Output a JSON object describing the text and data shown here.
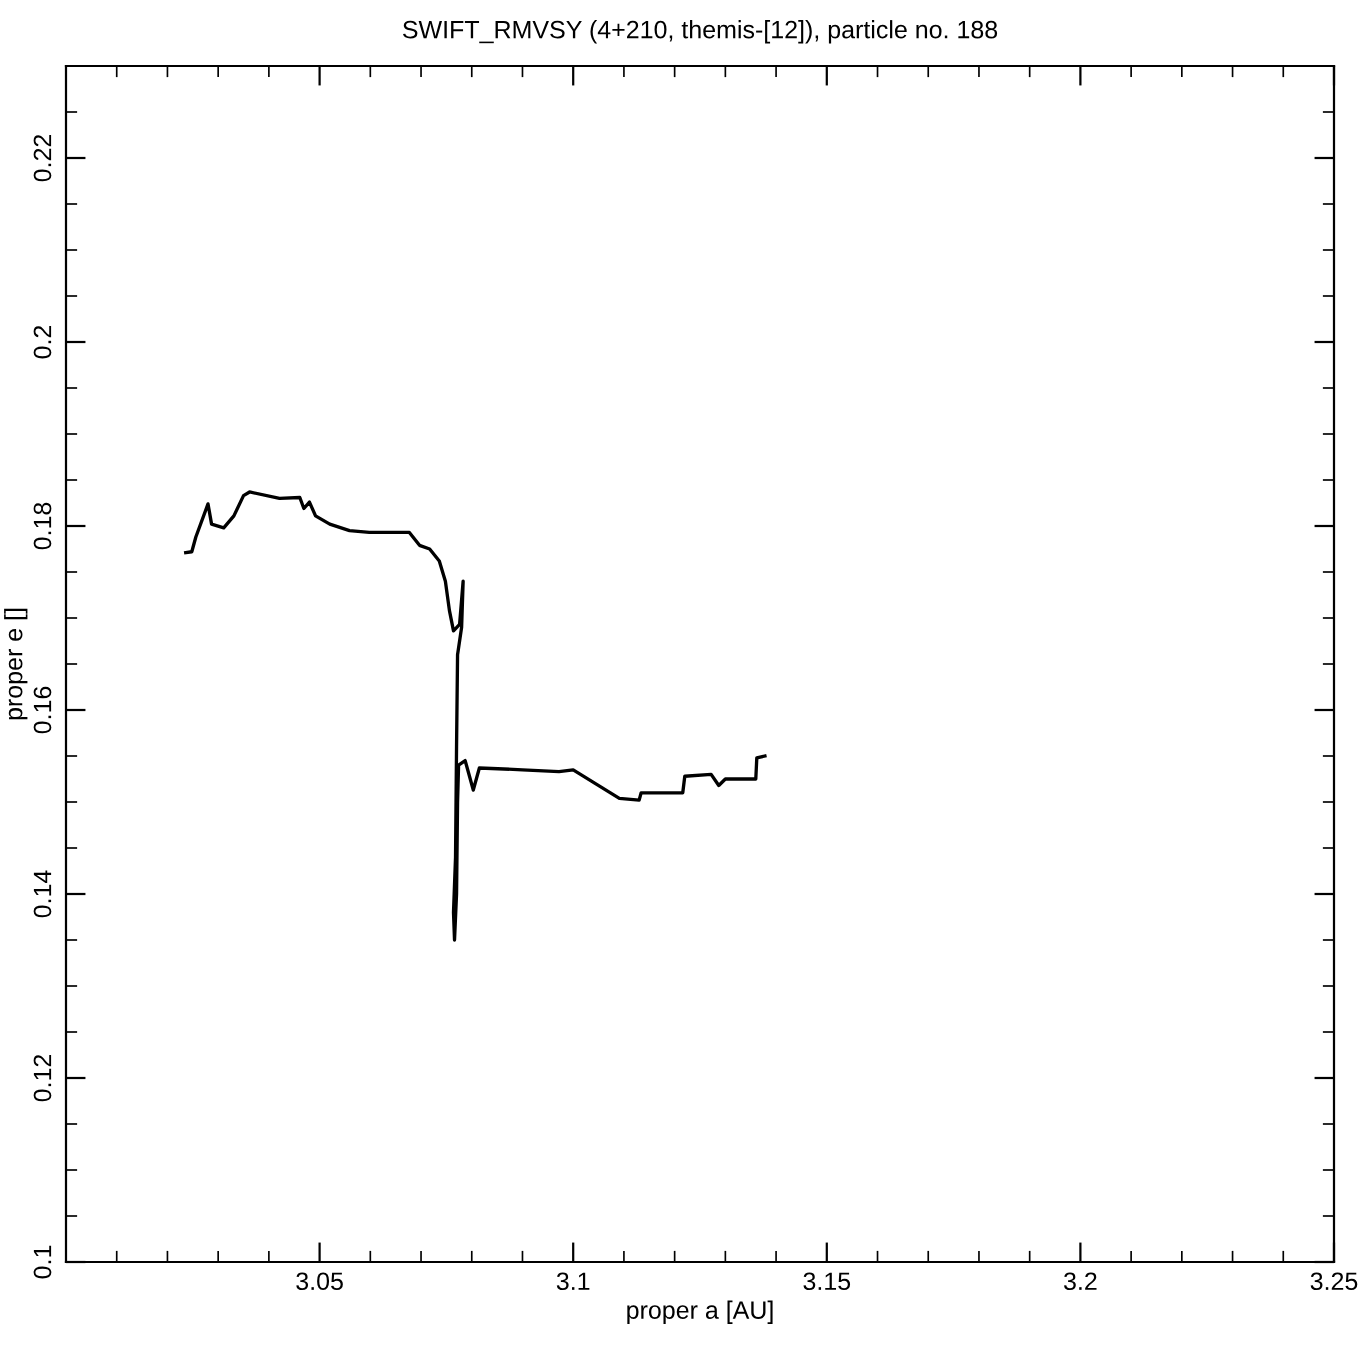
{
  "chart_data": {
    "type": "line",
    "title": "SWIFT_RMVSY (4+210, themis-[12]), particle no. 188",
    "xlabel": "proper a [AU]",
    "ylabel": "proper e []",
    "series": [
      {
        "color": "#000000",
        "x": [
          3.0236,
          3.0248,
          3.0256,
          3.028,
          3.0287,
          3.0311,
          3.0331,
          3.035,
          3.0362,
          3.0421,
          3.0461,
          3.0469,
          3.048,
          3.0492,
          3.052,
          3.0559,
          3.0598,
          3.0677,
          3.0697,
          3.0717,
          3.0736,
          3.0748,
          3.0756,
          3.0764,
          3.0776,
          3.0783,
          3.078,
          3.0772,
          3.077,
          3.0768,
          3.0764,
          3.0766,
          3.077,
          3.0772,
          3.0774,
          3.0787,
          3.0803,
          3.0815,
          3.09,
          3.0972,
          3.1,
          3.1091,
          3.113,
          3.1134,
          3.1216,
          3.122,
          3.1272,
          3.1287,
          3.13,
          3.136,
          3.1362,
          3.1378
        ],
        "values": [
          0.1771,
          0.1772,
          0.1788,
          0.1824,
          0.1802,
          0.1798,
          0.1811,
          0.1833,
          0.1837,
          0.183,
          0.1831,
          0.1819,
          0.1826,
          0.1811,
          0.1802,
          0.1795,
          0.1793,
          0.1793,
          0.1779,
          0.1775,
          0.1762,
          0.174,
          0.1708,
          0.1686,
          0.1693,
          0.174,
          0.169,
          0.166,
          0.156,
          0.144,
          0.138,
          0.135,
          0.14,
          0.15,
          0.154,
          0.1545,
          0.1513,
          0.1537,
          0.1535,
          0.1533,
          0.1535,
          0.1504,
          0.1502,
          0.151,
          0.151,
          0.1528,
          0.153,
          0.1518,
          0.1525,
          0.1525,
          0.1548,
          0.155
        ]
      }
    ],
    "xlim": [
      3.0,
      3.25
    ],
    "xticks": [
      3.05,
      3.1,
      3.15,
      3.2,
      3.25
    ],
    "ylim": [
      0.1,
      0.23
    ],
    "yticks": [
      0.1,
      0.12,
      0.14,
      0.16,
      0.18,
      0.2,
      0.22
    ],
    "grid": false,
    "legend": false,
    "marker": "none",
    "line_style": "solid"
  }
}
